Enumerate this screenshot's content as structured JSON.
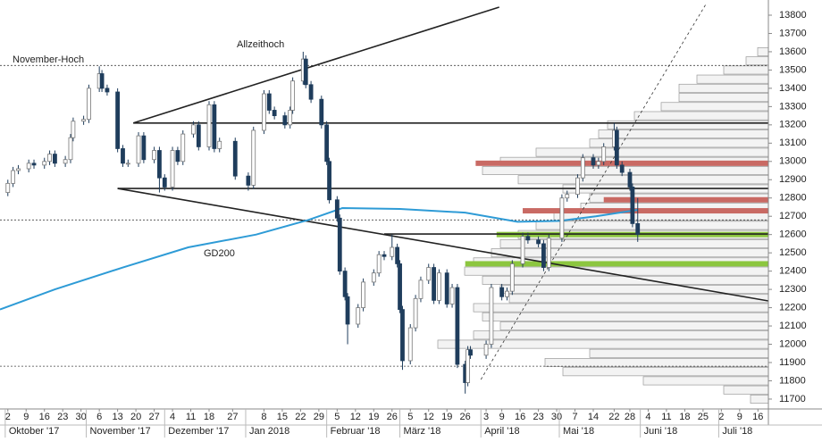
{
  "chart_data": {
    "type": "candlestick",
    "annotations": [
      "November-Hoch",
      "Allzeithoch",
      "GD200"
    ],
    "xlim": [
      "2017-09-29",
      "2018-07-20"
    ],
    "ylim": [
      11646,
      13883
    ],
    "yticks": [
      11700,
      11800,
      11900,
      12000,
      12100,
      12200,
      12300,
      12400,
      12500,
      12600,
      12700,
      12800,
      12900,
      13000,
      13100,
      13200,
      13300,
      13400,
      13500,
      13600,
      13700,
      13800
    ],
    "xticks": [
      {
        "value": "2017-10-02",
        "label": "2"
      },
      {
        "value": "2017-10-09",
        "label": "9"
      },
      {
        "value": "2017-10-16",
        "label": "16"
      },
      {
        "value": "2017-10-23",
        "label": "23"
      },
      {
        "value": "2017-10-30",
        "label": "30"
      },
      {
        "value": "2017-11-06",
        "label": "6"
      },
      {
        "value": "2017-11-13",
        "label": "13"
      },
      {
        "value": "2017-11-20",
        "label": "20"
      },
      {
        "value": "2017-11-27",
        "label": "27"
      },
      {
        "value": "2017-12-04",
        "label": "4"
      },
      {
        "value": "2017-12-11",
        "label": "11"
      },
      {
        "value": "2017-12-18",
        "label": "18"
      },
      {
        "value": "2017-12-27",
        "label": "27"
      },
      {
        "value": "2018-01-08",
        "label": "8"
      },
      {
        "value": "2018-01-15",
        "label": "15"
      },
      {
        "value": "2018-01-22",
        "label": "22"
      },
      {
        "value": "2018-01-29",
        "label": "29"
      },
      {
        "value": "2018-02-05",
        "label": "5"
      },
      {
        "value": "2018-02-12",
        "label": "12"
      },
      {
        "value": "2018-02-19",
        "label": "19"
      },
      {
        "value": "2018-02-26",
        "label": "26"
      },
      {
        "value": "2018-03-05",
        "label": "5"
      },
      {
        "value": "2018-03-12",
        "label": "12"
      },
      {
        "value": "2018-03-19",
        "label": "19"
      },
      {
        "value": "2018-03-26",
        "label": "26"
      },
      {
        "value": "2018-04-03",
        "label": "3"
      },
      {
        "value": "2018-04-09",
        "label": "9"
      },
      {
        "value": "2018-04-16",
        "label": "16"
      },
      {
        "value": "2018-04-23",
        "label": "23"
      },
      {
        "value": "2018-04-30",
        "label": "30"
      },
      {
        "value": "2018-05-07",
        "label": "7"
      },
      {
        "value": "2018-05-14",
        "label": "14"
      },
      {
        "value": "2018-05-22",
        "label": "22"
      },
      {
        "value": "2018-05-28",
        "label": "28"
      },
      {
        "value": "2018-06-04",
        "label": "4"
      },
      {
        "value": "2018-06-11",
        "label": "11"
      },
      {
        "value": "2018-06-18",
        "label": "18"
      },
      {
        "value": "2018-06-25",
        "label": "25"
      },
      {
        "value": "2018-07-02",
        "label": "2"
      },
      {
        "value": "2018-07-09",
        "label": "9"
      },
      {
        "value": "2018-07-16",
        "label": "16"
      }
    ],
    "month_labels": [
      {
        "value": "2017-10-01",
        "label": "Oktober '17"
      },
      {
        "value": "2017-11-01",
        "label": "November '17"
      },
      {
        "value": "2017-12-01",
        "label": "Dezember '17"
      },
      {
        "value": "2018-01-01",
        "label": "Jan 2018"
      },
      {
        "value": "2018-02-01",
        "label": "Februar '18"
      },
      {
        "value": "2018-03-01",
        "label": "März '18"
      },
      {
        "value": "2018-04-01",
        "label": "April '18"
      },
      {
        "value": "2018-05-01",
        "label": "Mai '18"
      },
      {
        "value": "2018-06-01",
        "label": "Juni '18"
      },
      {
        "value": "2018-07-01",
        "label": "Juli '18"
      }
    ],
    "candles": {
      "up_color": "#ffffff",
      "down_color": "#1f3d5c",
      "x": [
        "2017-10-02",
        "2017-10-04",
        "2017-10-06",
        "2017-10-10",
        "2017-10-12",
        "2017-10-16",
        "2017-10-18",
        "2017-10-20",
        "2017-10-24",
        "2017-10-26",
        "2017-10-27",
        "2017-10-31",
        "2017-11-02",
        "2017-11-06",
        "2017-11-07",
        "2017-11-09",
        "2017-11-13",
        "2017-11-15",
        "2017-11-17",
        "2017-11-21",
        "2017-11-23",
        "2017-11-27",
        "2017-11-29",
        "2017-12-01",
        "2017-12-04",
        "2017-12-06",
        "2017-12-08",
        "2017-12-12",
        "2017-12-14",
        "2017-12-18",
        "2017-12-20",
        "2017-12-22",
        "2017-12-28",
        "2018-01-02",
        "2018-01-04",
        "2018-01-08",
        "2018-01-10",
        "2018-01-12",
        "2018-01-16",
        "2018-01-18",
        "2018-01-19",
        "2018-01-23",
        "2018-01-24",
        "2018-01-26",
        "2018-01-30",
        "2018-02-01",
        "2018-02-02",
        "2018-02-05",
        "2018-02-06",
        "2018-02-08",
        "2018-02-09",
        "2018-02-13",
        "2018-02-15",
        "2018-02-19",
        "2018-02-21",
        "2018-02-23",
        "2018-02-26",
        "2018-02-28",
        "2018-03-01",
        "2018-03-02",
        "2018-03-05",
        "2018-03-07",
        "2018-03-09",
        "2018-03-12",
        "2018-03-14",
        "2018-03-16",
        "2018-03-19",
        "2018-03-21",
        "2018-03-23",
        "2018-03-26",
        "2018-03-27",
        "2018-03-28",
        "2018-04-03",
        "2018-04-05",
        "2018-04-09",
        "2018-04-11",
        "2018-04-13",
        "2018-04-17",
        "2018-04-19",
        "2018-04-23",
        "2018-04-25",
        "2018-04-27",
        "2018-05-02",
        "2018-05-04",
        "2018-05-08",
        "2018-05-10",
        "2018-05-14",
        "2018-05-16",
        "2018-05-18",
        "2018-05-22",
        "2018-05-23",
        "2018-05-25",
        "2018-05-28",
        "2018-05-29",
        "2018-05-31"
      ],
      "open": [
        12830,
        12880,
        12950,
        12960,
        12990,
        12980,
        13000,
        13040,
        12990,
        13010,
        13130,
        13220,
        13230,
        13400,
        13480,
        13400,
        13380,
        13070,
        12990,
        12990,
        13140,
        13010,
        13060,
        12910,
        12860,
        13060,
        13000,
        13150,
        13200,
        13080,
        13310,
        13070,
        13110,
        12920,
        12870,
        13170,
        13370,
        13280,
        13250,
        13200,
        13280,
        13440,
        13560,
        13420,
        13340,
        13200,
        13000,
        12790,
        12690,
        12400,
        12260,
        12110,
        12200,
        12340,
        12390,
        12490,
        12480,
        12530,
        12440,
        12190,
        11910,
        12090,
        12250,
        12350,
        12420,
        12240,
        12390,
        12220,
        12310,
        11890,
        11790,
        11970,
        11940,
        12000,
        12310,
        12260,
        12290,
        12440,
        12590,
        12570,
        12550,
        12420,
        12580,
        12800,
        12820,
        12910,
        13020,
        12980,
        13000,
        13080,
        13170,
        12980,
        12940,
        12860,
        12660
      ],
      "high": [
        12900,
        12970,
        12980,
        13010,
        13010,
        13020,
        13060,
        13060,
        13030,
        13150,
        13240,
        13250,
        13420,
        13520,
        13500,
        13420,
        13400,
        13090,
        13010,
        13160,
        13160,
        13080,
        13080,
        12930,
        13080,
        13080,
        13170,
        13220,
        13220,
        13330,
        13330,
        13130,
        13130,
        12940,
        13190,
        13390,
        13390,
        13300,
        13270,
        13300,
        13460,
        13600,
        13580,
        13440,
        13360,
        13220,
        13020,
        12810,
        12710,
        12420,
        12280,
        12220,
        12360,
        12410,
        12510,
        12510,
        12600,
        12550,
        12460,
        12210,
        12110,
        12270,
        12370,
        12440,
        12440,
        12410,
        12410,
        12330,
        12330,
        11910,
        11990,
        11990,
        12020,
        12330,
        12330,
        12310,
        12460,
        12610,
        12610,
        12590,
        12570,
        12600,
        12820,
        12840,
        12930,
        13040,
        13040,
        13020,
        13100,
        13210,
        13190,
        13000,
        12960,
        12880,
        12800
      ],
      "low": [
        12810,
        12860,
        12930,
        12940,
        12960,
        12960,
        12980,
        12970,
        12970,
        12990,
        13110,
        13200,
        13210,
        13380,
        13380,
        13360,
        13050,
        12970,
        12970,
        12970,
        12990,
        12990,
        12830,
        12840,
        12840,
        12980,
        12980,
        13130,
        13060,
        13060,
        13050,
        13050,
        12900,
        12840,
        12850,
        13150,
        13260,
        13230,
        13180,
        13180,
        13260,
        13420,
        13400,
        13320,
        13180,
        12980,
        12770,
        12670,
        12380,
        12240,
        12000,
        12090,
        12180,
        12320,
        12370,
        12460,
        12460,
        12420,
        12170,
        11860,
        11890,
        12070,
        12230,
        12330,
        12220,
        12220,
        12200,
        12200,
        11870,
        11730,
        11770,
        11920,
        11920,
        11980,
        12240,
        12240,
        12270,
        12420,
        12550,
        12530,
        12400,
        12400,
        12560,
        12780,
        12800,
        12890,
        12960,
        12960,
        12980,
        13060,
        12960,
        12920,
        12840,
        12640,
        12560
      ],
      "close": [
        12880,
        12950,
        12960,
        12990,
        12980,
        13000,
        13040,
        12990,
        13010,
        13130,
        13220,
        13230,
        13400,
        13480,
        13400,
        13380,
        13070,
        12990,
        12990,
        13140,
        13010,
        13060,
        12910,
        12860,
        13060,
        13000,
        13150,
        13200,
        13080,
        13310,
        13070,
        13110,
        12920,
        12870,
        13170,
        13370,
        13280,
        13250,
        13200,
        13280,
        13440,
        13560,
        13420,
        13340,
        13200,
        13000,
        12790,
        12690,
        12400,
        12260,
        12110,
        12200,
        12340,
        12390,
        12490,
        12480,
        12530,
        12440,
        12190,
        11910,
        12090,
        12250,
        12350,
        12420,
        12240,
        12390,
        12220,
        12310,
        11890,
        11790,
        11970,
        11940,
        12000,
        12310,
        12260,
        12290,
        12440,
        12590,
        12570,
        12550,
        12420,
        12580,
        12800,
        12820,
        12910,
        13020,
        12980,
        13000,
        13080,
        13170,
        12980,
        12940,
        12860,
        12660,
        12600
      ]
    },
    "gd200": {
      "color": "#2e9bd6",
      "x": [
        "2017-09-29",
        "2017-10-20",
        "2017-11-15",
        "2017-12-10",
        "2018-01-05",
        "2018-01-25",
        "2018-02-07",
        "2018-03-01",
        "2018-03-26",
        "2018-04-15",
        "2018-05-01",
        "2018-05-15",
        "2018-05-31"
      ],
      "values": [
        12190,
        12300,
        12420,
        12530,
        12600,
        12680,
        12745,
        12740,
        12720,
        12670,
        12675,
        12700,
        12735
      ]
    },
    "volume_profile": {
      "levels": [
        11700,
        11750,
        11800,
        11850,
        11900,
        11950,
        12000,
        12050,
        12100,
        12150,
        12200,
        12250,
        12300,
        12350,
        12400,
        12450,
        12500,
        12550,
        12600,
        12650,
        12700,
        12750,
        12800,
        12850,
        12900,
        12950,
        13000,
        13050,
        13100,
        13150,
        13200,
        13250,
        13300,
        13350,
        13400,
        13450,
        13500,
        13550,
        13600
      ],
      "values": [
        20,
        50,
        140,
        230,
        250,
        200,
        370,
        330,
        300,
        320,
        330,
        290,
        300,
        320,
        340,
        330,
        310,
        300,
        280,
        260,
        240,
        210,
        200,
        230,
        280,
        320,
        300,
        260,
        200,
        190,
        180,
        150,
        120,
        100,
        100,
        80,
        50,
        25,
        12
      ]
    },
    "zones": [
      {
        "color": "#c96a64",
        "y": 12990,
        "from": "2018-03-30"
      },
      {
        "color": "#c96a64",
        "y": 12790,
        "from": "2018-05-18"
      },
      {
        "color": "#c96a64",
        "y": 12730,
        "from": "2018-04-17"
      },
      {
        "color": "#8cc63f",
        "y": 12600,
        "from": "2018-04-07"
      },
      {
        "color": "#8cc63f",
        "y": 12440,
        "from": "2018-03-26"
      }
    ],
    "trend_lines": [
      {
        "x": [
          "2017-11-19",
          "2018-04-08"
        ],
        "y": [
          13210,
          13844
        ],
        "dashed": false
      },
      {
        "x": [
          "2017-11-19",
          "2018-07-20"
        ],
        "y": [
          13210,
          13210
        ],
        "dashed": false
      },
      {
        "x": [
          "2017-11-13",
          "2018-07-20"
        ],
        "y": [
          12852,
          12852
        ],
        "dashed": false
      },
      {
        "x": [
          "2017-11-13",
          "2018-07-20"
        ],
        "y": [
          12852,
          12237
        ],
        "dashed": false
      },
      {
        "x": [
          "2018-02-23",
          "2018-07-20"
        ],
        "y": [
          12603,
          12603
        ],
        "dashed": false
      },
      {
        "x": [
          "2018-04-01",
          "2018-06-26"
        ],
        "y": [
          11807,
          13858
        ],
        "dashed": true
      }
    ],
    "ref_lines": [
      13525,
      12680,
      11880
    ]
  }
}
